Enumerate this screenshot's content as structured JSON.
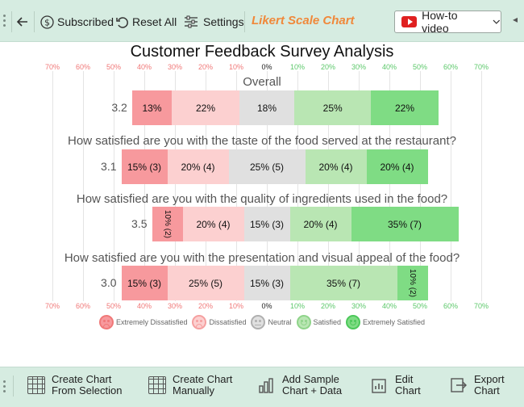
{
  "toolbar": {
    "back_icon": "arrow-left-icon",
    "subscribed_label": "Subscribed",
    "reset_label": "Reset All",
    "settings_label": "Settings",
    "app_name": "Likert Scale Chart",
    "howto_label": "How-to video",
    "accent_color": "#f0883a"
  },
  "colors": {
    "extremely_dissatisfied": "#f7999d",
    "dissatisfied": "#fcd0d0",
    "neutral": "#e0e0e0",
    "satisfied": "#b9e6b3",
    "extremely_satisfied": "#7fdc84",
    "neg_tick": "#f07878",
    "pos_tick": "#5cc86a"
  },
  "chart_data": {
    "type": "bar",
    "title": "Customer Feedback Survey Analysis",
    "stacked": "diverging",
    "x_ticks": [
      "70%",
      "60%",
      "50%",
      "40%",
      "30%",
      "20%",
      "10%",
      "0%",
      "10%",
      "20%",
      "30%",
      "40%",
      "50%",
      "60%",
      "70%"
    ],
    "xlim": [
      -70,
      70
    ],
    "categories_order": [
      "Extremely Dissatisfied",
      "Dissatisfied",
      "Neutral",
      "Satisfied",
      "Extremely Satisfied"
    ],
    "questions": [
      {
        "title": "Overall",
        "score": "3.2",
        "values": [
          13,
          22,
          18,
          25,
          22
        ],
        "labels": [
          "13%",
          "22%",
          "18%",
          "25%",
          "22%"
        ]
      },
      {
        "title": "How satisfied are you with the taste of the food served at the restaurant?",
        "score": "3.1",
        "values": [
          15,
          20,
          25,
          20,
          20
        ],
        "labels": [
          "15% (3)",
          "20% (4)",
          "25% (5)",
          "20% (4)",
          "20% (4)"
        ]
      },
      {
        "title": "How satisfied are you with the quality of ingredients used in the food?",
        "score": "3.5",
        "values": [
          10,
          20,
          15,
          20,
          35
        ],
        "labels": [
          "10% (2)",
          "20% (4)",
          "15% (3)",
          "20% (4)",
          "35% (7)"
        ]
      },
      {
        "title": "How satisfied are you with the presentation and visual appeal of the food?",
        "score": "3.0",
        "values": [
          15,
          25,
          15,
          35,
          10
        ],
        "labels": [
          "15% (3)",
          "25% (5)",
          "15% (3)",
          "35% (7)",
          "10% (2)"
        ]
      }
    ],
    "legend": [
      "Extremely Dissatisfied",
      "Dissatisfied",
      "Neutral",
      "Satisfied",
      "Extremely Satisfied"
    ],
    "legend_placement": "bottom"
  },
  "bottom": {
    "create_selection": "Create Chart\nFrom Selection",
    "create_manual": "Create Chart\nManually",
    "add_sample": "Add Sample\nChart + Data",
    "edit_chart": "Edit\nChart",
    "export_chart": "Export\nChart"
  }
}
